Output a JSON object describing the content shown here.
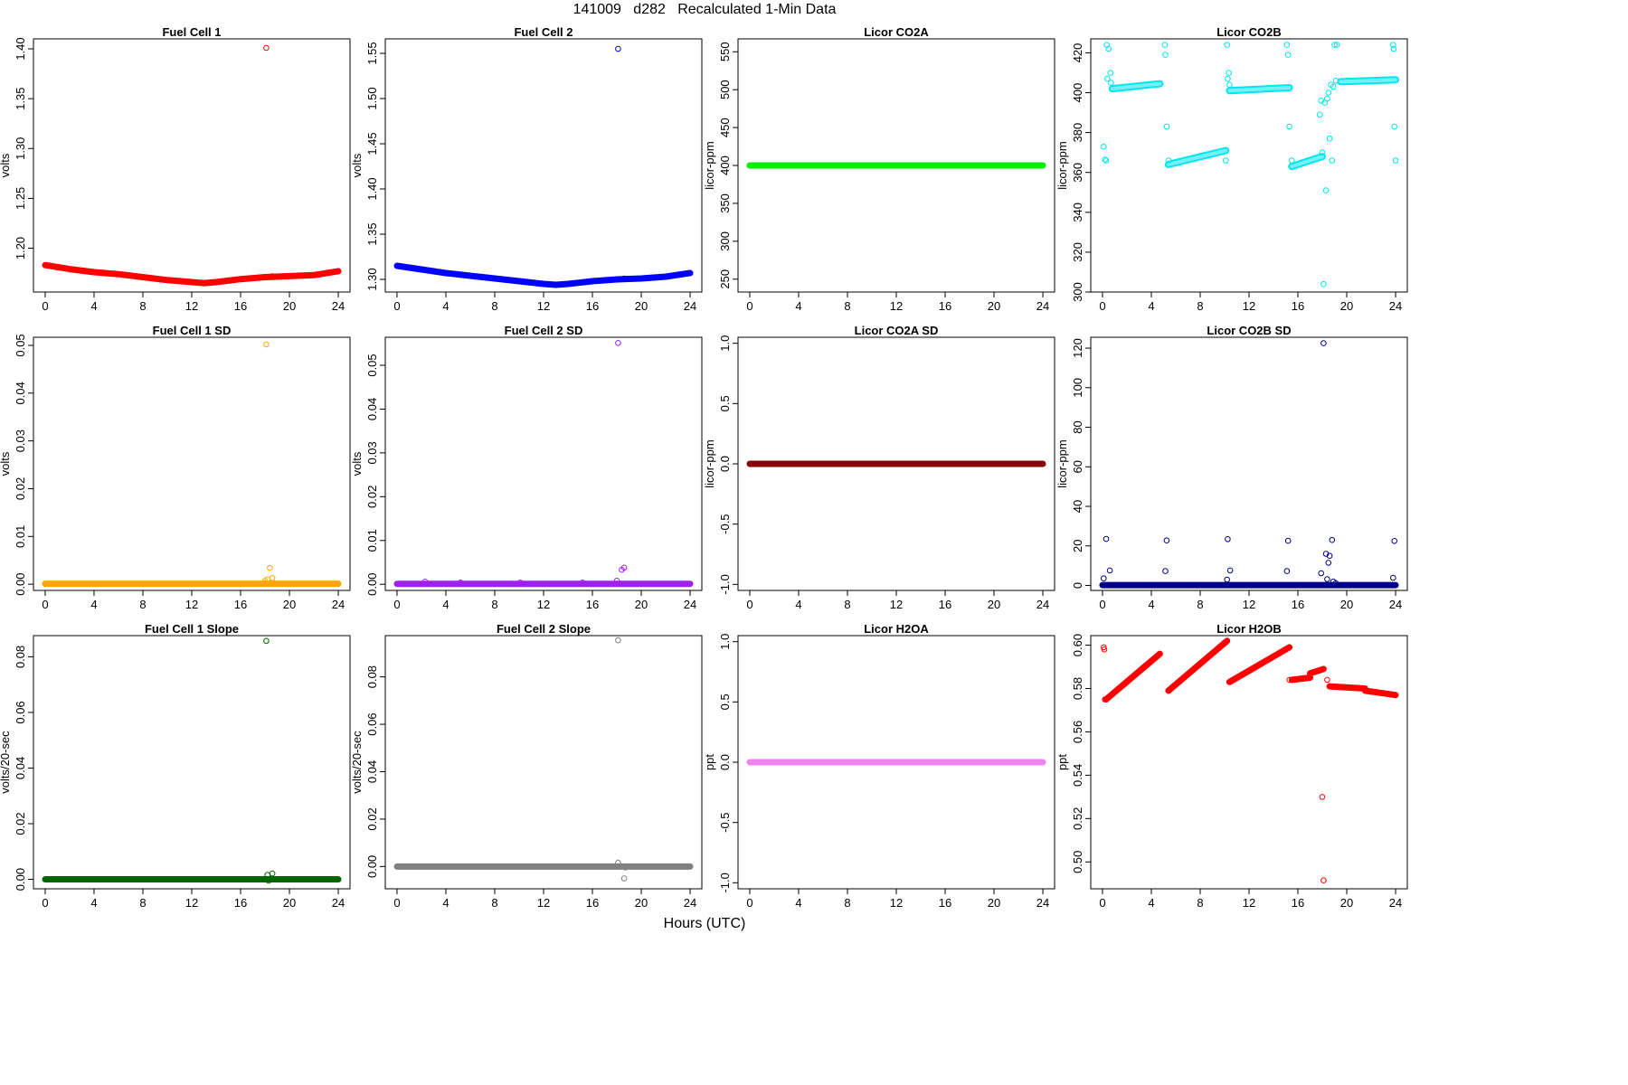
{
  "header": {
    "title": "141009   d282   Recalculated 1-Min Data",
    "xlabel": "Hours (UTC)"
  },
  "chart_data": [
    {
      "type": "scatter",
      "title": "Fuel Cell 1",
      "ylabel": "volts",
      "color": "#ff0000",
      "xlim": [
        -0.96,
        24.96
      ],
      "ylim": [
        1.156,
        1.41
      ],
      "xticks": [
        0,
        4,
        8,
        12,
        16,
        20,
        24
      ],
      "yticks": [
        1.2,
        1.25,
        1.3,
        1.35,
        1.4
      ],
      "ytick_labels": [
        "1.20",
        "1.25",
        "1.30",
        "1.35",
        "1.40"
      ],
      "line": {
        "x": [
          0,
          2,
          4,
          6,
          8,
          10,
          12,
          13,
          14,
          16,
          18,
          20,
          22,
          24
        ],
        "y": [
          1.183,
          1.179,
          1.176,
          1.174,
          1.171,
          1.168,
          1.166,
          1.165,
          1.166,
          1.169,
          1.171,
          1.172,
          1.173,
          1.177
        ]
      },
      "outliers": [
        {
          "x": 18.1,
          "y": 1.401
        },
        {
          "x": 18.6,
          "y": 1.172
        }
      ]
    },
    {
      "type": "scatter",
      "title": "Fuel Cell 2",
      "ylabel": "volts",
      "color": "#0000ff",
      "xlim": [
        -0.96,
        24.96
      ],
      "ylim": [
        1.286,
        1.566
      ],
      "xticks": [
        0,
        4,
        8,
        12,
        16,
        20,
        24
      ],
      "yticks": [
        1.3,
        1.35,
        1.4,
        1.45,
        1.5,
        1.55
      ],
      "ytick_labels": [
        "1.30",
        "1.35",
        "1.40",
        "1.45",
        "1.50",
        "1.55"
      ],
      "line": {
        "x": [
          0,
          2,
          4,
          6,
          8,
          10,
          12,
          13,
          14,
          16,
          18,
          20,
          22,
          24
        ],
        "y": [
          1.315,
          1.311,
          1.307,
          1.304,
          1.301,
          1.298,
          1.295,
          1.294,
          1.295,
          1.298,
          1.3,
          1.301,
          1.303,
          1.307
        ]
      },
      "outliers": [
        {
          "x": 18.1,
          "y": 1.555
        },
        {
          "x": 18.6,
          "y": 1.301
        }
      ]
    },
    {
      "type": "scatter",
      "title": "Licor CO2A",
      "ylabel": "licor-ppm",
      "color": "#00ee00",
      "xlim": [
        -0.96,
        24.96
      ],
      "ylim": [
        233,
        567
      ],
      "xticks": [
        0,
        4,
        8,
        12,
        16,
        20,
        24
      ],
      "yticks": [
        250,
        300,
        350,
        400,
        450,
        500,
        550
      ],
      "ytick_labels": [
        "250",
        "300",
        "350",
        "400",
        "450",
        "500",
        "550"
      ],
      "line": {
        "x": [
          0,
          24
        ],
        "y": [
          400,
          400
        ]
      },
      "outliers": []
    },
    {
      "type": "scatter",
      "title": "Licor CO2B",
      "ylabel": "licor-ppm",
      "color": "#00e5ee",
      "hollow": true,
      "xlim": [
        -0.96,
        24.96
      ],
      "ylim": [
        300,
        427
      ],
      "xticks": [
        0,
        4,
        8,
        12,
        16,
        20,
        24
      ],
      "yticks": [
        300,
        320,
        340,
        360,
        380,
        400,
        420
      ],
      "ytick_labels": [
        "300",
        "320",
        "340",
        "360",
        "380",
        "400",
        "420"
      ],
      "segments": [
        {
          "x": [
            0.8,
            4.7
          ],
          "y": [
            402,
            404.5
          ]
        },
        {
          "x": [
            5.4,
            10.1
          ],
          "y": [
            364,
            371
          ]
        },
        {
          "x": [
            10.4,
            15.3
          ],
          "y": [
            401,
            402.5
          ]
        },
        {
          "x": [
            15.5,
            18.0
          ],
          "y": [
            363,
            368
          ]
        },
        {
          "x": [
            19.5,
            24.0
          ],
          "y": [
            405.5,
            406.5
          ]
        }
      ],
      "outliers": [
        {
          "x": 0.1,
          "y": 373
        },
        {
          "x": 0.2,
          "y": 366.5
        },
        {
          "x": 0.3,
          "y": 366
        },
        {
          "x": 0.35,
          "y": 424
        },
        {
          "x": 0.5,
          "y": 422
        },
        {
          "x": 0.4,
          "y": 407
        },
        {
          "x": 0.65,
          "y": 410
        },
        {
          "x": 0.7,
          "y": 405
        },
        {
          "x": 5.1,
          "y": 424
        },
        {
          "x": 5.15,
          "y": 419
        },
        {
          "x": 5.25,
          "y": 383
        },
        {
          "x": 5.4,
          "y": 366
        },
        {
          "x": 10.2,
          "y": 424
        },
        {
          "x": 10.25,
          "y": 407
        },
        {
          "x": 10.35,
          "y": 410
        },
        {
          "x": 10.4,
          "y": 404
        },
        {
          "x": 10.1,
          "y": 366
        },
        {
          "x": 15.1,
          "y": 424
        },
        {
          "x": 15.2,
          "y": 419
        },
        {
          "x": 15.3,
          "y": 383
        },
        {
          "x": 15.5,
          "y": 366
        },
        {
          "x": 17.8,
          "y": 389
        },
        {
          "x": 17.9,
          "y": 396
        },
        {
          "x": 18.0,
          "y": 370
        },
        {
          "x": 18.1,
          "y": 304
        },
        {
          "x": 18.2,
          "y": 395
        },
        {
          "x": 18.3,
          "y": 351
        },
        {
          "x": 18.4,
          "y": 397
        },
        {
          "x": 18.5,
          "y": 400
        },
        {
          "x": 18.6,
          "y": 377
        },
        {
          "x": 18.7,
          "y": 404
        },
        {
          "x": 18.8,
          "y": 366
        },
        {
          "x": 18.9,
          "y": 403
        },
        {
          "x": 19.0,
          "y": 424
        },
        {
          "x": 19.1,
          "y": 406
        },
        {
          "x": 19.2,
          "y": 424
        },
        {
          "x": 23.8,
          "y": 424
        },
        {
          "x": 23.85,
          "y": 422
        },
        {
          "x": 23.9,
          "y": 383
        },
        {
          "x": 24.0,
          "y": 366
        }
      ]
    },
    {
      "type": "scatter",
      "title": "Fuel Cell 1 SD",
      "ylabel": "volts",
      "color": "#ffa500",
      "xlim": [
        -0.96,
        24.96
      ],
      "ylim": [
        -0.0013,
        0.0517
      ],
      "xticks": [
        0,
        4,
        8,
        12,
        16,
        20,
        24
      ],
      "yticks": [
        0,
        0.01,
        0.02,
        0.03,
        0.04,
        0.05
      ],
      "ytick_labels": [
        "0.00",
        "0.01",
        "0.02",
        "0.03",
        "0.04",
        "0.05"
      ],
      "line": {
        "x": [
          0,
          24
        ],
        "y": [
          0.0001,
          0.0001
        ]
      },
      "outliers": [
        {
          "x": 18.1,
          "y": 0.0502
        },
        {
          "x": 18.4,
          "y": 0.0034
        },
        {
          "x": 18.6,
          "y": 0.0013
        },
        {
          "x": 18.2,
          "y": 0.001
        },
        {
          "x": 18.0,
          "y": 0.0007
        }
      ]
    },
    {
      "type": "scatter",
      "title": "Fuel Cell 2 SD",
      "ylabel": "volts",
      "color": "#a020f0",
      "xlim": [
        -0.96,
        24.96
      ],
      "ylim": [
        -0.0014,
        0.0564
      ],
      "xticks": [
        0,
        4,
        8,
        12,
        16,
        20,
        24
      ],
      "yticks": [
        0,
        0.01,
        0.02,
        0.03,
        0.04,
        0.05
      ],
      "ytick_labels": [
        "0.00",
        "0.01",
        "0.02",
        "0.03",
        "0.04",
        "0.05"
      ],
      "line": {
        "x": [
          0,
          24
        ],
        "y": [
          0.0001,
          0.0001
        ]
      },
      "outliers": [
        {
          "x": 18.1,
          "y": 0.0551
        },
        {
          "x": 18.4,
          "y": 0.0033
        },
        {
          "x": 18.6,
          "y": 0.0038
        },
        {
          "x": 18.0,
          "y": 0.0008
        },
        {
          "x": 2.3,
          "y": 0.0006
        },
        {
          "x": 5.2,
          "y": 0.0004
        },
        {
          "x": 10.1,
          "y": 0.0004
        },
        {
          "x": 15.2,
          "y": 0.0004
        }
      ]
    },
    {
      "type": "scatter",
      "title": "Licor CO2A SD",
      "ylabel": "licor-ppm",
      "color": "#8b0000",
      "xlim": [
        -0.96,
        24.96
      ],
      "ylim": [
        -1.05,
        1.05
      ],
      "xticks": [
        0,
        4,
        8,
        12,
        16,
        20,
        24
      ],
      "yticks": [
        -1.0,
        -0.5,
        0.0,
        0.5,
        1.0
      ],
      "ytick_labels": [
        "-1.0",
        "-0.5",
        "0.0",
        "0.5",
        "1.0"
      ],
      "line": {
        "x": [
          0,
          24
        ],
        "y": [
          0,
          0
        ]
      },
      "outliers": []
    },
    {
      "type": "scatter",
      "title": "Licor CO2B SD",
      "ylabel": "licor-ppm",
      "color": "#00008b",
      "xlim": [
        -0.96,
        24.96
      ],
      "ylim": [
        -2.5,
        125.5
      ],
      "xticks": [
        0,
        4,
        8,
        12,
        16,
        20,
        24
      ],
      "yticks": [
        0,
        20,
        40,
        60,
        80,
        100,
        120
      ],
      "ytick_labels": [
        "0",
        "20",
        "40",
        "60",
        "80",
        "100",
        "120"
      ],
      "line": {
        "x": [
          0,
          24
        ],
        "y": [
          0.2,
          0.2
        ]
      },
      "outliers": [
        {
          "x": 0.1,
          "y": 3.6
        },
        {
          "x": 0.3,
          "y": 23.5
        },
        {
          "x": 0.6,
          "y": 7.6
        },
        {
          "x": 5.25,
          "y": 22.8
        },
        {
          "x": 5.15,
          "y": 7.3
        },
        {
          "x": 10.2,
          "y": 3.0
        },
        {
          "x": 10.25,
          "y": 23.4
        },
        {
          "x": 10.45,
          "y": 7.6
        },
        {
          "x": 15.2,
          "y": 22.6
        },
        {
          "x": 15.1,
          "y": 7.3
        },
        {
          "x": 18.1,
          "y": 122.5
        },
        {
          "x": 17.9,
          "y": 6.2
        },
        {
          "x": 18.3,
          "y": 16.0
        },
        {
          "x": 18.4,
          "y": 3.2
        },
        {
          "x": 18.5,
          "y": 11.5
        },
        {
          "x": 18.6,
          "y": 15.0
        },
        {
          "x": 18.8,
          "y": 23.0
        },
        {
          "x": 18.9,
          "y": 2.0
        },
        {
          "x": 19.1,
          "y": 1.2
        },
        {
          "x": 23.8,
          "y": 3.9
        },
        {
          "x": 23.9,
          "y": 22.5
        }
      ]
    },
    {
      "type": "scatter",
      "title": "Fuel Cell 1 Slope",
      "ylabel": "volts/20-sec",
      "color": "#006400",
      "xlim": [
        -0.96,
        24.96
      ],
      "ylim": [
        -0.0034,
        0.0876
      ],
      "xticks": [
        0,
        4,
        8,
        12,
        16,
        20,
        24
      ],
      "yticks": [
        0,
        0.02,
        0.04,
        0.06,
        0.08
      ],
      "ytick_labels": [
        "0.00",
        "0.02",
        "0.04",
        "0.06",
        "0.08"
      ],
      "line": {
        "x": [
          0,
          24
        ],
        "y": [
          0,
          0
        ]
      },
      "outliers": [
        {
          "x": 18.1,
          "y": 0.0857
        },
        {
          "x": 18.2,
          "y": 0.0016
        },
        {
          "x": 18.6,
          "y": 0.0021
        },
        {
          "x": 18.3,
          "y": -0.0005
        }
      ]
    },
    {
      "type": "scatter",
      "title": "Fuel Cell 2 Slope",
      "ylabel": "volts/20-sec",
      "color": "#808080",
      "xlim": [
        -0.96,
        24.96
      ],
      "ylim": [
        -0.0094,
        0.0974
      ],
      "xticks": [
        0,
        4,
        8,
        12,
        16,
        20,
        24
      ],
      "yticks": [
        0,
        0.02,
        0.04,
        0.06,
        0.08
      ],
      "ytick_labels": [
        "0.00",
        "0.02",
        "0.04",
        "0.06",
        "0.08"
      ],
      "line": {
        "x": [
          0,
          24
        ],
        "y": [
          0,
          0
        ]
      },
      "outliers": [
        {
          "x": 18.1,
          "y": 0.0954
        },
        {
          "x": 18.1,
          "y": 0.0016
        },
        {
          "x": 18.6,
          "y": -0.005
        },
        {
          "x": 18.7,
          "y": -0.0004
        }
      ]
    },
    {
      "type": "scatter",
      "title": "Licor H2OA",
      "ylabel": "ppt",
      "color": "#ee82ee",
      "xlim": [
        -0.96,
        24.96
      ],
      "ylim": [
        -1.05,
        1.05
      ],
      "xticks": [
        0,
        4,
        8,
        12,
        16,
        20,
        24
      ],
      "yticks": [
        -1.0,
        -0.5,
        0.0,
        0.5,
        1.0
      ],
      "ytick_labels": [
        "-1.0",
        "-0.5",
        "0.0",
        "0.5",
        "1.0"
      ],
      "line": {
        "x": [
          0,
          24
        ],
        "y": [
          0,
          0
        ]
      },
      "outliers": []
    },
    {
      "type": "scatter",
      "title": "Licor H2OB",
      "ylabel": "ppt",
      "color": "#ff0000",
      "xlim": [
        -0.96,
        24.96
      ],
      "ylim": [
        0.4876,
        0.6044
      ],
      "xticks": [
        0,
        4,
        8,
        12,
        16,
        20,
        24
      ],
      "yticks": [
        0.5,
        0.52,
        0.54,
        0.56,
        0.58,
        0.6
      ],
      "ytick_labels": [
        "0.50",
        "0.52",
        "0.54",
        "0.56",
        "0.58",
        "0.60"
      ],
      "segments": [
        {
          "x": [
            0.3,
            4.7
          ],
          "y": [
            0.575,
            0.596
          ]
        },
        {
          "x": [
            5.4,
            10.2
          ],
          "y": [
            0.579,
            0.602
          ]
        },
        {
          "x": [
            10.4,
            15.3
          ],
          "y": [
            0.583,
            0.599
          ]
        },
        {
          "x": [
            15.5,
            17.0
          ],
          "y": [
            0.584,
            0.585
          ]
        },
        {
          "x": [
            17.0,
            18.1
          ],
          "y": [
            0.587,
            0.589
          ]
        },
        {
          "x": [
            18.6,
            21.5
          ],
          "y": [
            0.581,
            0.58
          ]
        },
        {
          "x": [
            21.5,
            24.0
          ],
          "y": [
            0.579,
            0.577
          ]
        }
      ],
      "outliers": [
        {
          "x": 0.1,
          "y": 0.599
        },
        {
          "x": 0.15,
          "y": 0.598
        },
        {
          "x": 0.2,
          "y": 0.575
        },
        {
          "x": 18.0,
          "y": 0.53
        },
        {
          "x": 18.1,
          "y": 0.4915
        },
        {
          "x": 18.4,
          "y": 0.584
        },
        {
          "x": 15.3,
          "y": 0.584
        }
      ]
    }
  ]
}
